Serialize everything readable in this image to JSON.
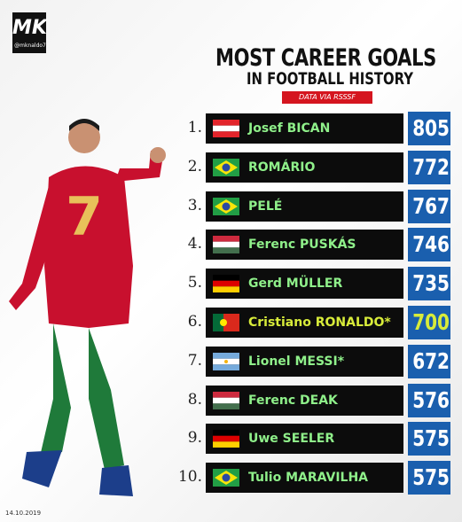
{
  "header": {
    "logo": "MK",
    "handle": "@mknaldo7",
    "title": "MOST CAREER GOALS",
    "subtitle": "IN FOOTBALL HISTORY",
    "source": "DATA VIA RSSSF"
  },
  "table": {
    "rows": [
      {
        "rank": "1.",
        "name": "Josef BICAN",
        "goals": 805
      },
      {
        "rank": "2.",
        "name": "ROMÁRIO",
        "goals": 772
      },
      {
        "rank": "3.",
        "name": "PELÉ",
        "goals": 767
      },
      {
        "rank": "4.",
        "name": "Ferenc PUSKÁS",
        "goals": 746
      },
      {
        "rank": "5.",
        "name": "Gerd MÜLLER",
        "goals": 735
      },
      {
        "rank": "6.",
        "name": "Cristiano RONALDO*",
        "goals": 700
      },
      {
        "rank": "7.",
        "name": "Lionel MESSI*",
        "goals": 672
      },
      {
        "rank": "8.",
        "name": "Ferenc DEAK",
        "goals": 576
      },
      {
        "rank": "9.",
        "name": "Uwe SEELER",
        "goals": 575
      },
      {
        "rank": "10.",
        "name": "Tulio MARAVILHA",
        "goals": 575
      }
    ]
  },
  "footer": {
    "date": "14.10.2019"
  }
}
